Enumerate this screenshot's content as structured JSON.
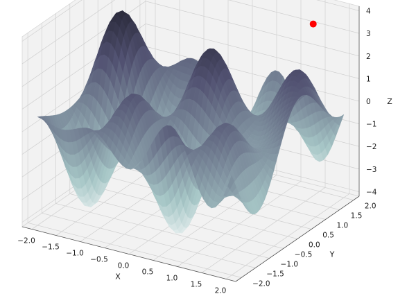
{
  "chart_data": {
    "type": "surface",
    "title": "",
    "xlabel": "X",
    "ylabel": "Y",
    "zlabel": "Z",
    "xlim": [
      -2.2,
      2.2
    ],
    "ylim": [
      -2.2,
      2.2
    ],
    "zlim": [
      -4.2,
      4.2
    ],
    "x_ticks": [
      "−2.0",
      "−1.5",
      "−1.0",
      "−0.5",
      "0.0",
      "0.5",
      "1.0",
      "1.5",
      "2.0"
    ],
    "y_ticks": [
      "−2.0",
      "−1.5",
      "−1.0",
      "−0.5",
      "0.0",
      "0.5",
      "1.0",
      "1.5",
      "2.0"
    ],
    "z_ticks": [
      "−4",
      "−3",
      "−2",
      "−1",
      "0",
      "1",
      "2",
      "3",
      "4"
    ],
    "x_tick_values": [
      -2,
      -1.5,
      -1,
      -0.5,
      0,
      0.5,
      1,
      1.5,
      2
    ],
    "y_tick_values": [
      -2,
      -1.5,
      -1,
      -0.5,
      0,
      0.5,
      1,
      1.5,
      2
    ],
    "z_tick_values": [
      -4,
      -3,
      -2,
      -1,
      0,
      1,
      2,
      3,
      4
    ],
    "grid": true,
    "colormap": "bone",
    "marker": {
      "x": 1.6,
      "y": 1.6,
      "z": 3.6,
      "color": "#ff0000"
    },
    "pane_color": "#f2f2f2",
    "grid_color": "#cfcfcf"
  }
}
